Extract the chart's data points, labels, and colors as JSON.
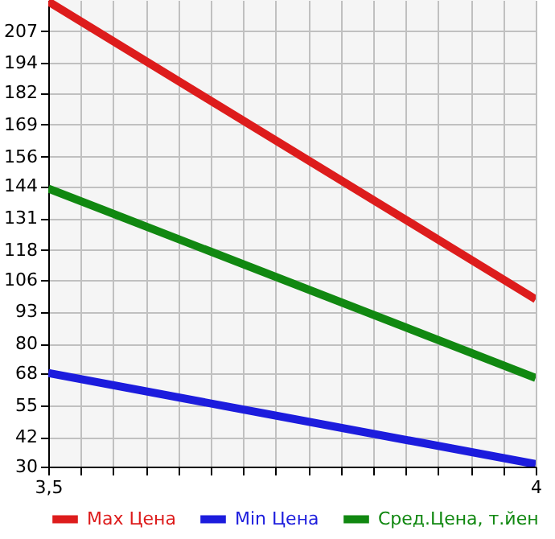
{
  "chart_data": {
    "type": "line",
    "x": [
      3.5,
      4
    ],
    "series": [
      {
        "name": "Max Цена",
        "color": "#dd1c1c",
        "values": [
          219,
          98
        ]
      },
      {
        "name": "Min Цена",
        "color": "#1c1cdd",
        "values": [
          68,
          31
        ]
      },
      {
        "name": "Сред.Цена, т.йен",
        "color": "#118811",
        "values": [
          143,
          66
        ]
      }
    ],
    "xlim": [
      3.5,
      4
    ],
    "xticks": [
      {
        "value": 3.5,
        "label": "3,5"
      },
      {
        "value": 3.53333,
        "label": null
      },
      {
        "value": 3.56667,
        "label": null
      },
      {
        "value": 3.6,
        "label": null
      },
      {
        "value": 3.63333,
        "label": null
      },
      {
        "value": 3.66667,
        "label": null
      },
      {
        "value": 3.7,
        "label": null
      },
      {
        "value": 3.73333,
        "label": null
      },
      {
        "value": 3.76667,
        "label": null
      },
      {
        "value": 3.8,
        "label": null
      },
      {
        "value": 3.83333,
        "label": null
      },
      {
        "value": 3.86667,
        "label": null
      },
      {
        "value": 3.9,
        "label": null
      },
      {
        "value": 3.93333,
        "label": null
      },
      {
        "value": 3.96667,
        "label": null
      },
      4
    ],
    "ylim": [
      30,
      219.6
    ],
    "yticks": [
      30,
      42,
      55,
      68,
      80,
      93,
      106,
      118,
      131,
      144,
      156,
      169,
      182,
      194,
      207
    ],
    "grid": true,
    "legend": "bottom",
    "marker": "none",
    "line_style": "solid"
  }
}
